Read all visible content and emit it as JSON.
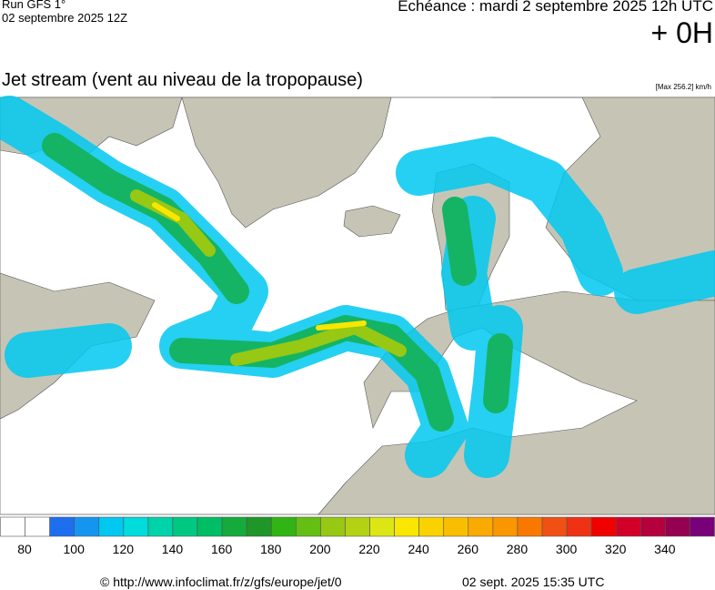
{
  "header": {
    "run": "Run GFS 1°",
    "run_date": "02 septembre 2025 12Z",
    "valid": "Echéance : mardi 2 septembre 2025 12h UTC",
    "lead": "+ 0H",
    "title": "Jet stream (vent au niveau de la tropopause)",
    "max": "[Max 256.2] km/h"
  },
  "colorbar": {
    "colors": [
      "#ffffff",
      "#ffffff",
      "#1e6ef0",
      "#1496f0",
      "#00c8f0",
      "#00dcdc",
      "#00d2aa",
      "#00c882",
      "#00be64",
      "#14aa3c",
      "#1e9628",
      "#32b414",
      "#64be14",
      "#96c814",
      "#b4d214",
      "#dce614",
      "#fae600",
      "#fad200",
      "#fabe00",
      "#faaa00",
      "#fa9600",
      "#fa7800",
      "#f05014",
      "#f03214",
      "#f00000",
      "#d20028",
      "#b4003c",
      "#960050",
      "#780078"
    ],
    "ticks": [
      80,
      100,
      120,
      140,
      160,
      180,
      200,
      220,
      240,
      260,
      280,
      300,
      320,
      340
    ]
  },
  "footer": {
    "source": "© http://www.infoclimat.fr/z/gfs/europe/jet/0",
    "generated": "02 sept. 2025 15:35 UTC"
  }
}
